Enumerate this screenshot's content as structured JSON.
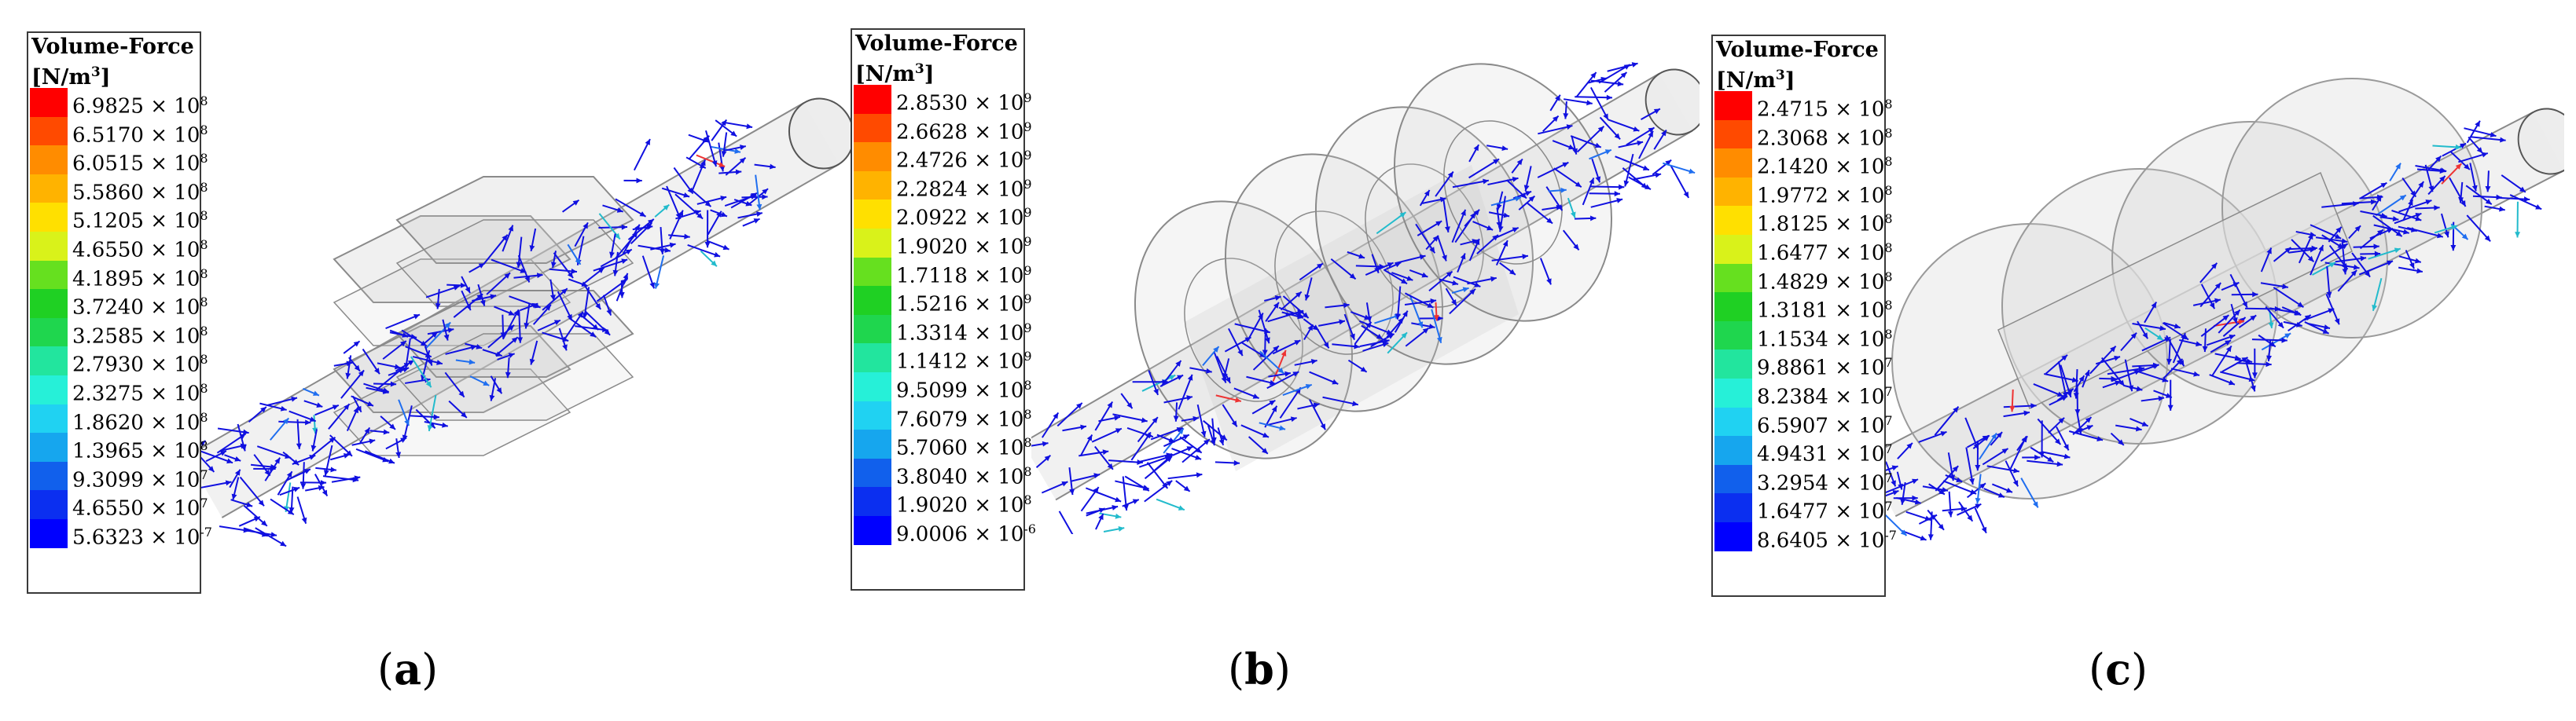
{
  "panels": [
    {
      "caption_letter": "a",
      "legend": {
        "title": "Volume-Force",
        "unit_base": "[N/m",
        "unit_exp": "3",
        "unit_close": "]",
        "ticks": [
          {
            "m": "6.9825",
            "e": "8"
          },
          {
            "m": "6.5170",
            "e": "8"
          },
          {
            "m": "6.0515",
            "e": "8"
          },
          {
            "m": "5.5860",
            "e": "8"
          },
          {
            "m": "5.1205",
            "e": "8"
          },
          {
            "m": "4.6550",
            "e": "8"
          },
          {
            "m": "4.1895",
            "e": "8"
          },
          {
            "m": "3.7240",
            "e": "8"
          },
          {
            "m": "3.2585",
            "e": "8"
          },
          {
            "m": "2.7930",
            "e": "8"
          },
          {
            "m": "2.3275",
            "e": "8"
          },
          {
            "m": "1.8620",
            "e": "8"
          },
          {
            "m": "1.3965",
            "e": "8"
          },
          {
            "m": "9.3099",
            "e": "7"
          },
          {
            "m": "4.6550",
            "e": "7"
          },
          {
            "m": "5.6323",
            "e": "-7"
          }
        ]
      },
      "geometry": "hexagonal"
    },
    {
      "caption_letter": "b",
      "legend": {
        "title": "Volume-Force",
        "unit_base": "[N/m",
        "unit_exp": "3",
        "unit_close": "]",
        "ticks": [
          {
            "m": "2.8530",
            "e": "9"
          },
          {
            "m": "2.6628",
            "e": "9"
          },
          {
            "m": "2.4726",
            "e": "9"
          },
          {
            "m": "2.2824",
            "e": "9"
          },
          {
            "m": "2.0922",
            "e": "9"
          },
          {
            "m": "1.9020",
            "e": "9"
          },
          {
            "m": "1.7118",
            "e": "9"
          },
          {
            "m": "1.5216",
            "e": "9"
          },
          {
            "m": "1.3314",
            "e": "9"
          },
          {
            "m": "1.1412",
            "e": "9"
          },
          {
            "m": "9.5099",
            "e": "8"
          },
          {
            "m": "7.6079",
            "e": "8"
          },
          {
            "m": "5.7060",
            "e": "8"
          },
          {
            "m": "3.8040",
            "e": "8"
          },
          {
            "m": "1.9020",
            "e": "8"
          },
          {
            "m": "9.0006",
            "e": "-6"
          }
        ]
      },
      "geometry": "cylindrical"
    },
    {
      "caption_letter": "c",
      "legend": {
        "title": "Volume-Force",
        "unit_base": "[N/m",
        "unit_exp": "3",
        "unit_close": "]",
        "ticks": [
          {
            "m": "2.4715",
            "e": "8"
          },
          {
            "m": "2.3068",
            "e": "8"
          },
          {
            "m": "2.1420",
            "e": "8"
          },
          {
            "m": "1.9772",
            "e": "8"
          },
          {
            "m": "1.8125",
            "e": "8"
          },
          {
            "m": "1.6477",
            "e": "8"
          },
          {
            "m": "1.4829",
            "e": "8"
          },
          {
            "m": "1.3181",
            "e": "8"
          },
          {
            "m": "1.1534",
            "e": "8"
          },
          {
            "m": "9.8861",
            "e": "7"
          },
          {
            "m": "8.2384",
            "e": "7"
          },
          {
            "m": "6.5907",
            "e": "7"
          },
          {
            "m": "4.9431",
            "e": "7"
          },
          {
            "m": "3.2954",
            "e": "7"
          },
          {
            "m": "1.6477",
            "e": "7"
          },
          {
            "m": "8.6405",
            "e": "-7"
          }
        ]
      },
      "geometry": "spherical"
    }
  ],
  "colormap": [
    "#ff0000",
    "#ff4a00",
    "#ff8c00",
    "#ffb300",
    "#ffe000",
    "#d9f21a",
    "#66e01f",
    "#1fd023",
    "#1fd64e",
    "#22e59e",
    "#26f0d8",
    "#20d2f2",
    "#16a6ee",
    "#1160ec",
    "#0b2ff0",
    "#0000ff"
  ],
  "arrow_color": "#1010e0",
  "times_symbol": "×",
  "base_ten": "10"
}
